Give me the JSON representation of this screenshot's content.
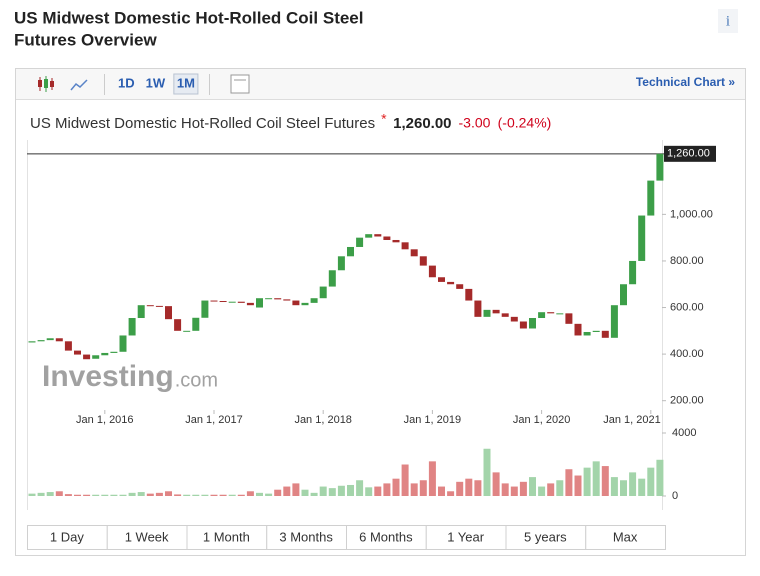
{
  "header": {
    "title_lines": [
      "US Midwest Domestic Hot-Rolled Coil Steel",
      "Futures Overview"
    ],
    "info": "i"
  },
  "toolbar": {
    "intervals": [
      "1D",
      "1W",
      "1M"
    ],
    "active_interval": 2,
    "technical_link": "Technical Chart »"
  },
  "quote": {
    "name": "US Midwest Domestic Hot-Rolled Coil Steel Futures",
    "marker": "*",
    "change": "-3.00",
    "change_pct": "(-0.24%)"
  },
  "chart_data": {
    "type": "candlestick",
    "x": [
      "2015-05",
      "2015-06",
      "2015-07",
      "2015-08",
      "2015-09",
      "2015-10",
      "2015-11",
      "2015-12",
      "2016-01",
      "2016-02",
      "2016-03",
      "2016-04",
      "2016-05",
      "2016-06",
      "2016-07",
      "2016-08",
      "2016-09",
      "2016-10",
      "2016-11",
      "2016-12",
      "2017-01",
      "2017-02",
      "2017-03",
      "2017-04",
      "2017-05",
      "2017-06",
      "2017-07",
      "2017-08",
      "2017-09",
      "2017-10",
      "2017-11",
      "2017-12",
      "2018-01",
      "2018-02",
      "2018-03",
      "2018-04",
      "2018-05",
      "2018-06",
      "2018-07",
      "2018-08",
      "2018-09",
      "2018-10",
      "2018-11",
      "2018-12",
      "2019-01",
      "2019-02",
      "2019-03",
      "2019-04",
      "2019-05",
      "2019-06",
      "2019-07",
      "2019-08",
      "2019-09",
      "2019-10",
      "2019-11",
      "2019-12",
      "2020-01",
      "2020-02",
      "2020-03",
      "2020-04",
      "2020-05",
      "2020-06",
      "2020-07",
      "2020-08",
      "2020-09",
      "2020-10",
      "2020-11",
      "2020-12",
      "2021-01",
      "2021-02"
    ],
    "open": [
      450,
      455,
      460,
      468,
      455,
      415,
      398,
      380,
      395,
      405,
      410,
      480,
      555,
      610,
      607,
      606,
      550,
      500,
      500,
      556,
      630,
      628,
      625,
      625,
      620,
      600,
      640,
      640,
      635,
      630,
      610,
      620,
      640,
      690,
      760,
      820,
      860,
      900,
      915,
      905,
      890,
      880,
      850,
      820,
      780,
      730,
      710,
      700,
      680,
      630,
      560,
      590,
      575,
      560,
      540,
      510,
      555,
      580,
      575,
      575,
      530,
      480,
      495,
      500,
      470,
      610,
      700,
      800,
      995,
      1145
    ],
    "close": [
      455,
      460,
      468,
      455,
      415,
      398,
      378,
      395,
      405,
      410,
      480,
      555,
      610,
      607,
      606,
      550,
      500,
      500,
      556,
      630,
      628,
      625,
      625,
      620,
      610,
      640,
      640,
      635,
      630,
      610,
      620,
      640,
      690,
      760,
      820,
      860,
      900,
      915,
      905,
      890,
      880,
      850,
      820,
      780,
      730,
      710,
      700,
      680,
      630,
      560,
      590,
      575,
      560,
      540,
      510,
      555,
      580,
      575,
      575,
      530,
      480,
      495,
      500,
      470,
      610,
      700,
      800,
      995,
      1145,
      1260
    ],
    "volume": [
      150,
      200,
      250,
      300,
      120,
      80,
      80,
      80,
      80,
      80,
      80,
      200,
      250,
      150,
      200,
      300,
      100,
      80,
      80,
      80,
      80,
      80,
      80,
      80,
      300,
      200,
      150,
      400,
      600,
      800,
      400,
      200,
      600,
      500,
      650,
      700,
      1000,
      550,
      600,
      800,
      1100,
      2000,
      800,
      1000,
      2200,
      600,
      300,
      900,
      1100,
      1000,
      3000,
      1500,
      800,
      600,
      900,
      1200,
      600,
      800,
      1000,
      1700,
      1300,
      1800,
      2200,
      1900,
      1200,
      1000,
      1500,
      1100,
      1800,
      2300
    ],
    "up_color": "#3c9e48",
    "down_color": "#a52a2a",
    "volume_up_color": "#a3d4aa",
    "volume_down_color": "#e08484",
    "ylim": [
      160,
      1285
    ],
    "yticks": [
      {
        "value": 200,
        "label": "200.00"
      },
      {
        "value": 400,
        "label": "400.00"
      },
      {
        "value": 600,
        "label": "600.00"
      },
      {
        "value": 800,
        "label": "800.00"
      },
      {
        "value": 1000,
        "label": "1,000.00"
      }
    ],
    "xticks": [
      {
        "value": "2016-01",
        "label": "Jan 1, 2016"
      },
      {
        "value": "2017-01",
        "label": "Jan 1, 2017"
      },
      {
        "value": "2018-01",
        "label": "Jan 1, 2018"
      },
      {
        "value": "2019-01",
        "label": "Jan 1, 2019"
      },
      {
        "value": "2020-01",
        "label": "Jan 1, 2020"
      },
      {
        "value": "2021-01",
        "label": "Jan 1, 2021"
      }
    ],
    "volume_ylim": [
      0,
      4000
    ],
    "volume_ticks": [
      0,
      4000
    ],
    "last_price": {
      "value": 1260,
      "label": "1,260.00"
    },
    "watermark": {
      "brand": "Investing",
      "suffix": ".com"
    }
  },
  "ranges": [
    "1 Day",
    "1 Week",
    "1 Month",
    "3 Months",
    "6 Months",
    "1 Year",
    "5 years",
    "Max"
  ]
}
